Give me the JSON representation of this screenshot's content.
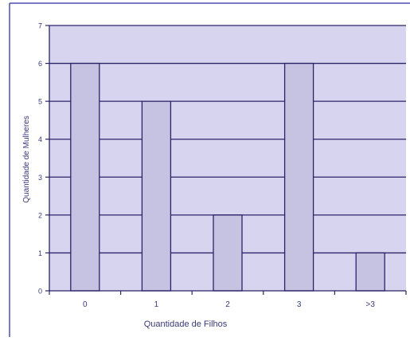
{
  "chart_data": {
    "type": "bar",
    "categories": [
      "0",
      "1",
      "2",
      "3",
      ">3"
    ],
    "values": [
      6,
      5,
      2,
      6,
      1
    ],
    "xlabel": "Quantidade de Filhos",
    "ylabel": "Quantidade de Mulheres",
    "ylim": [
      0,
      7
    ],
    "yticks": [
      "0",
      "1",
      "2",
      "3",
      "4",
      "5",
      "6",
      "7"
    ],
    "grid": true,
    "colors": {
      "plot_background": "#d6d4ee",
      "bar_fill": "#c5c2e2",
      "bar_stroke": "#2a2468",
      "grid": "#2a2468",
      "axis": "#2a2468",
      "text": "#3a3a7a",
      "frame": "#4b4fae"
    }
  }
}
